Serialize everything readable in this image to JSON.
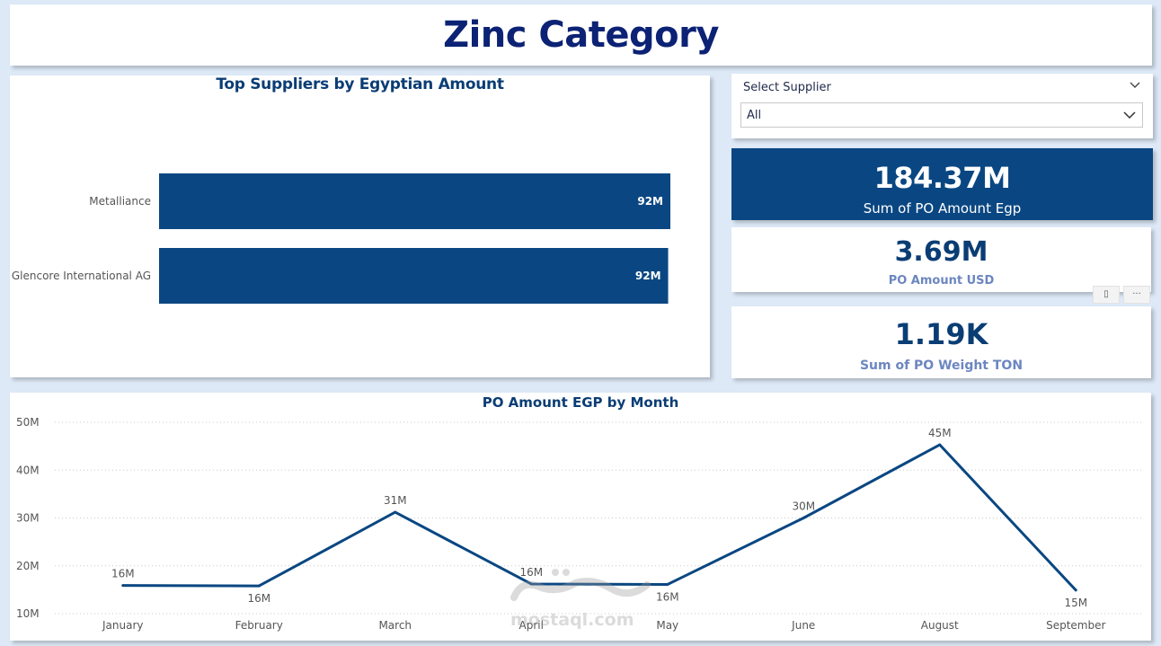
{
  "header": {
    "title": "Zinc Category"
  },
  "bar_chart": {
    "title": "Top Suppliers by Egyptian Amount",
    "chart_data": {
      "type": "bar",
      "orientation": "horizontal",
      "title": "Top Suppliers by Egyptian Amount",
      "categories": [
        "Metalliance",
        "Glencore International AG"
      ],
      "values": [
        92.3,
        91.9
      ],
      "value_labels": [
        "92M",
        "92M"
      ],
      "xlim": [
        0,
        95
      ],
      "color": "#0a4782",
      "value_label_color": "#ffffff"
    }
  },
  "slicer": {
    "title": "Select Supplier",
    "selected": "All",
    "collapse_icon": "chevron-down-icon",
    "dropdown_icon": "chevron-down-icon"
  },
  "cards": {
    "egp": {
      "value": "184.37M",
      "label": "Sum of PO Amount Egp",
      "bg": "#0a4782"
    },
    "usd": {
      "value": "3.69M",
      "label": "PO Amount USD"
    },
    "ton": {
      "value": "1.19K",
      "label": "Sum of PO Weight TON"
    }
  },
  "visual_header": {
    "filter_icon": "filter-icon",
    "more_icon": "more-options-icon"
  },
  "line_chart": {
    "title": "PO Amount EGP by Month",
    "chart_data": {
      "type": "line",
      "title": "PO Amount EGP by Month",
      "categories": [
        "January",
        "February",
        "March",
        "April",
        "May",
        "June",
        "August",
        "September"
      ],
      "values": [
        15.9,
        15.8,
        31.2,
        16.2,
        16.1,
        30.0,
        45.3,
        14.9
      ],
      "data_labels": [
        "16M",
        "16M",
        "31M",
        "16M",
        "16M",
        "30M",
        "45M",
        "15M"
      ],
      "label_positions": [
        "above",
        "below",
        "above",
        "above",
        "below",
        "above",
        "above",
        "below"
      ],
      "y_ticks": [
        10,
        20,
        30,
        40,
        50
      ],
      "y_tick_labels": [
        "10M",
        "20M",
        "30M",
        "40M",
        "50M"
      ],
      "ylim": [
        10,
        50
      ],
      "grid": true,
      "color": "#0a4782"
    }
  },
  "watermark": {
    "text": "mostaql.com"
  }
}
